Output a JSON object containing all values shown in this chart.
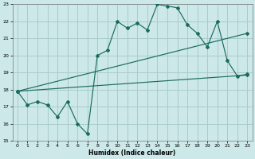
{
  "title": "",
  "xlabel": "Humidex (Indice chaleur)",
  "ylabel": "",
  "xlim": [
    -0.5,
    23.5
  ],
  "ylim": [
    15,
    23
  ],
  "yticks": [
    15,
    16,
    17,
    18,
    19,
    20,
    21,
    22,
    23
  ],
  "xticks": [
    0,
    1,
    2,
    3,
    4,
    5,
    6,
    7,
    8,
    9,
    10,
    11,
    12,
    13,
    14,
    15,
    16,
    17,
    18,
    19,
    20,
    21,
    22,
    23
  ],
  "bg_color": "#cce8e8",
  "line_color": "#1a6b60",
  "grid_color": "#aacccc",
  "line1_x": [
    0,
    1,
    2,
    3,
    4,
    5,
    6,
    7,
    8,
    9,
    10,
    11,
    12,
    13,
    14,
    15,
    16,
    17,
    18,
    19,
    20,
    21,
    22,
    23
  ],
  "line1_y": [
    17.9,
    17.1,
    17.3,
    17.1,
    16.4,
    17.3,
    16.0,
    15.4,
    20.0,
    20.3,
    22.0,
    21.6,
    21.9,
    21.5,
    23.0,
    22.9,
    22.8,
    21.8,
    21.3,
    20.5,
    22.0,
    19.7,
    18.8,
    18.9
  ],
  "line2_x": [
    0,
    23
  ],
  "line2_y": [
    17.9,
    21.3
  ],
  "line3_x": [
    0,
    23
  ],
  "line3_y": [
    17.9,
    18.85
  ]
}
